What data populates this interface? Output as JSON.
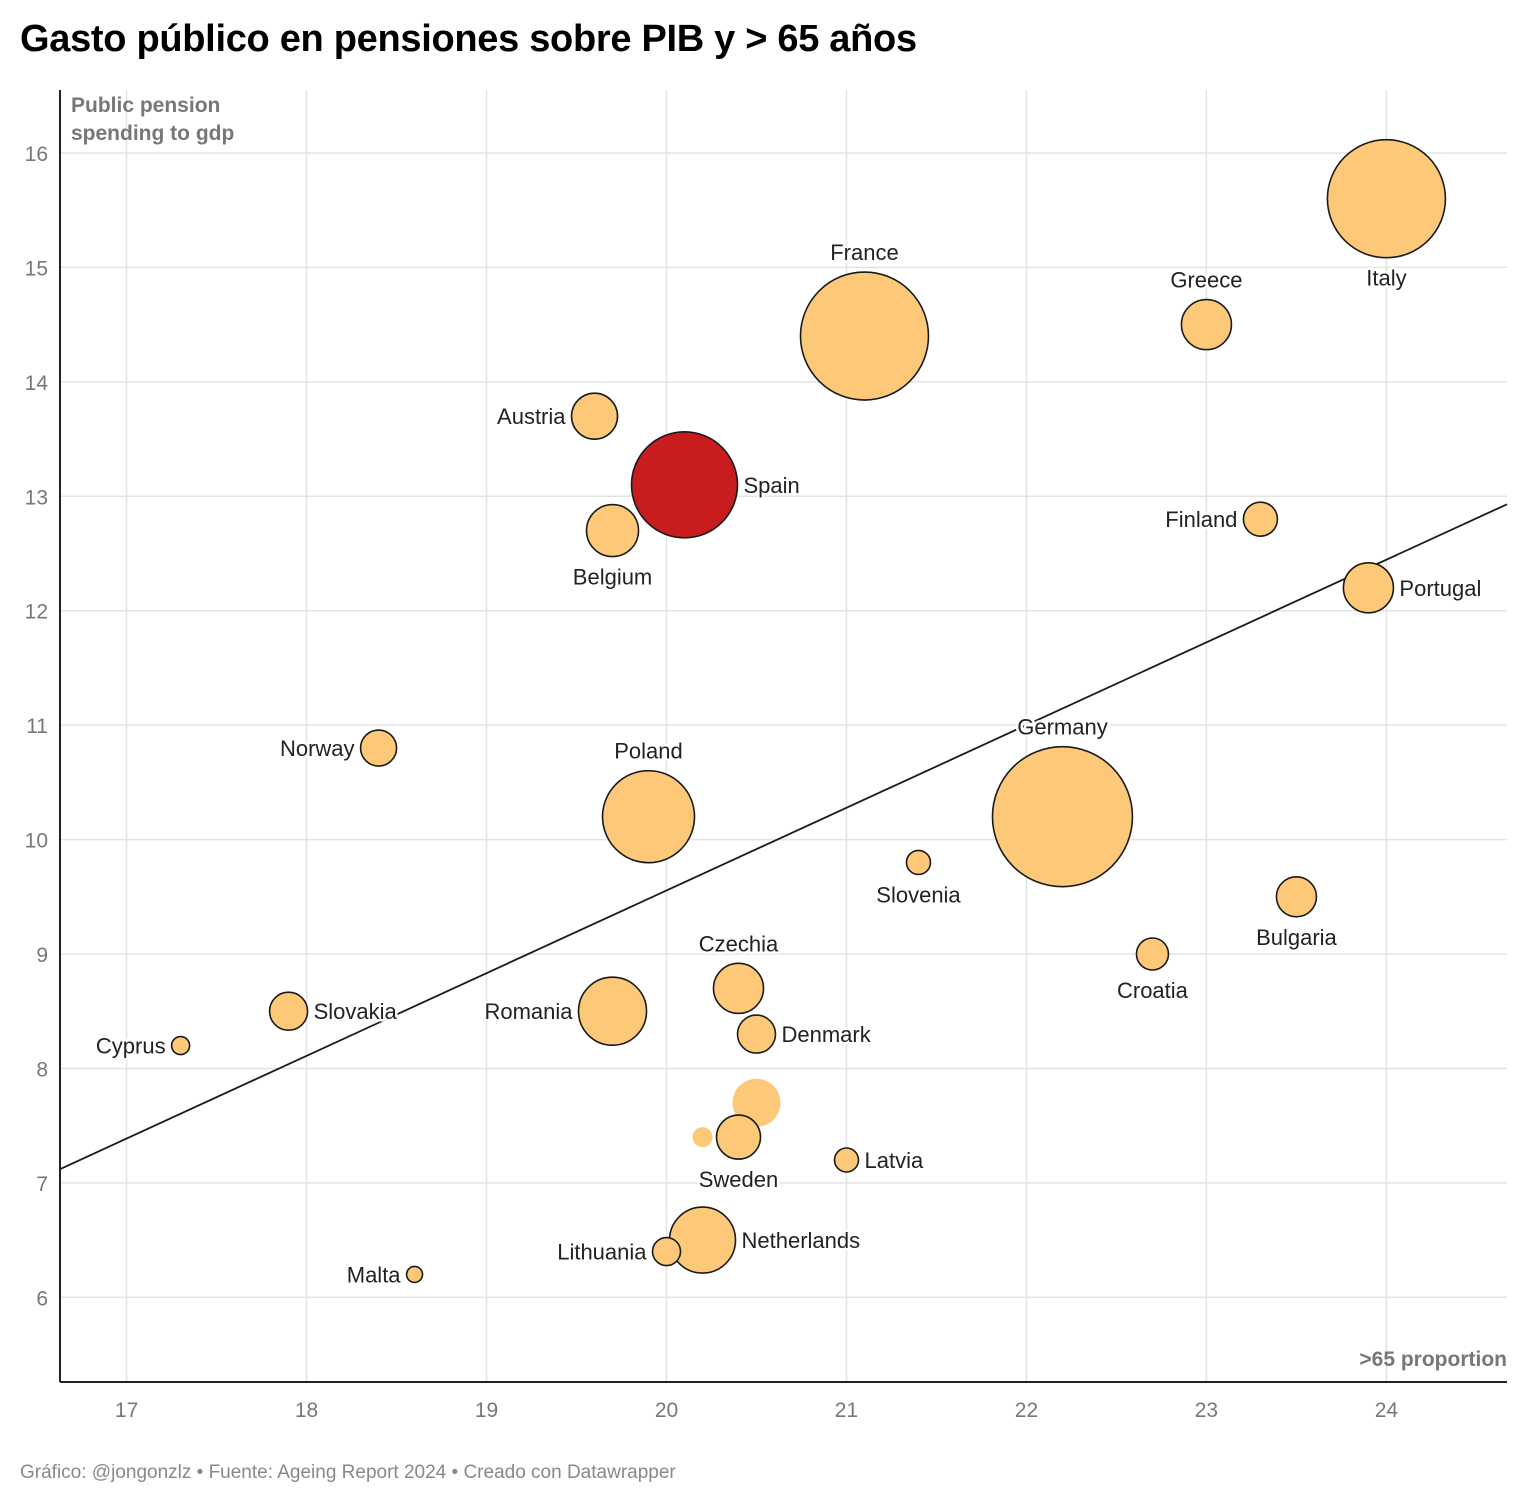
{
  "title": "Gasto público en pensiones sobre PIB y > 65 años",
  "footer": "Gráfico: @jongonzlz • Fuente: Ageing Report 2024 • Creado con Datawrapper",
  "chart_data": {
    "type": "scatter",
    "ylabel": "Public pension spending to gdp",
    "xlabel": ">65 proportion",
    "xlim": [
      16.63,
      24.67
    ],
    "ylim": [
      5.26,
      16.55
    ],
    "xticks": [
      17,
      18,
      19,
      20,
      21,
      22,
      23,
      24
    ],
    "yticks": [
      6,
      7,
      8,
      9,
      10,
      11,
      12,
      13,
      14,
      15,
      16
    ],
    "grid": true,
    "default_color": "#fdc978",
    "highlight_color": "#c81c1e",
    "trendline": {
      "x": [
        16.63,
        24.67
      ],
      "y": [
        7.12,
        12.93
      ]
    },
    "points": [
      {
        "label": "Italy",
        "x": 24.0,
        "y": 15.6,
        "size": 59,
        "labelPos": "below"
      },
      {
        "label": "France",
        "x": 21.1,
        "y": 14.4,
        "size": 64,
        "labelPos": "above"
      },
      {
        "label": "Greece",
        "x": 23.0,
        "y": 14.5,
        "size": 25,
        "labelPos": "above"
      },
      {
        "label": "Austria",
        "x": 19.6,
        "y": 13.7,
        "size": 23,
        "labelPos": "left"
      },
      {
        "label": "Spain",
        "x": 20.1,
        "y": 13.1,
        "size": 53,
        "labelPos": "right",
        "highlight": true
      },
      {
        "label": "Belgium",
        "x": 19.7,
        "y": 12.7,
        "size": 26,
        "labelPos": "below"
      },
      {
        "label": "Finland",
        "x": 23.3,
        "y": 12.8,
        "size": 17,
        "labelPos": "left"
      },
      {
        "label": "Portugal",
        "x": 23.9,
        "y": 12.2,
        "size": 25,
        "labelPos": "right"
      },
      {
        "label": "Norway",
        "x": 18.4,
        "y": 10.8,
        "size": 18,
        "labelPos": "left"
      },
      {
        "label": "Poland",
        "x": 19.9,
        "y": 10.2,
        "size": 46,
        "labelPos": "above"
      },
      {
        "label": "Germany",
        "x": 22.2,
        "y": 10.2,
        "size": 70,
        "labelPos": "above"
      },
      {
        "label": "Slovenia",
        "x": 21.4,
        "y": 9.8,
        "size": 12,
        "labelPos": "below"
      },
      {
        "label": "Bulgaria",
        "x": 23.5,
        "y": 9.5,
        "size": 20,
        "labelPos": "below"
      },
      {
        "label": "Croatia",
        "x": 22.7,
        "y": 9.0,
        "size": 16,
        "labelPos": "below"
      },
      {
        "label": "Czechia",
        "x": 20.4,
        "y": 8.7,
        "size": 25,
        "labelPos": "above"
      },
      {
        "label": "Slovakia",
        "x": 17.9,
        "y": 8.5,
        "size": 19,
        "labelPos": "right"
      },
      {
        "label": "Romania",
        "x": 19.7,
        "y": 8.5,
        "size": 34,
        "labelPos": "left"
      },
      {
        "label": "Denmark",
        "x": 20.5,
        "y": 8.3,
        "size": 19,
        "labelPos": "right"
      },
      {
        "label": "Cyprus",
        "x": 17.3,
        "y": 8.2,
        "size": 9,
        "labelPos": "left"
      },
      {
        "label": "",
        "x": 20.5,
        "y": 7.7,
        "size": 24,
        "noStroke": true
      },
      {
        "label": "",
        "x": 20.2,
        "y": 7.4,
        "size": 10,
        "noStroke": true
      },
      {
        "label": "Sweden",
        "x": 20.4,
        "y": 7.4,
        "size": 22,
        "labelPos": "below"
      },
      {
        "label": "Latvia",
        "x": 21.0,
        "y": 7.2,
        "size": 12,
        "labelPos": "right"
      },
      {
        "label": "Netherlands",
        "x": 20.2,
        "y": 6.5,
        "size": 33,
        "labelPos": "right"
      },
      {
        "label": "Lithuania",
        "x": 20.0,
        "y": 6.4,
        "size": 14,
        "labelPos": "left"
      },
      {
        "label": "Malta",
        "x": 18.6,
        "y": 6.2,
        "size": 8,
        "labelPos": "left"
      }
    ]
  }
}
